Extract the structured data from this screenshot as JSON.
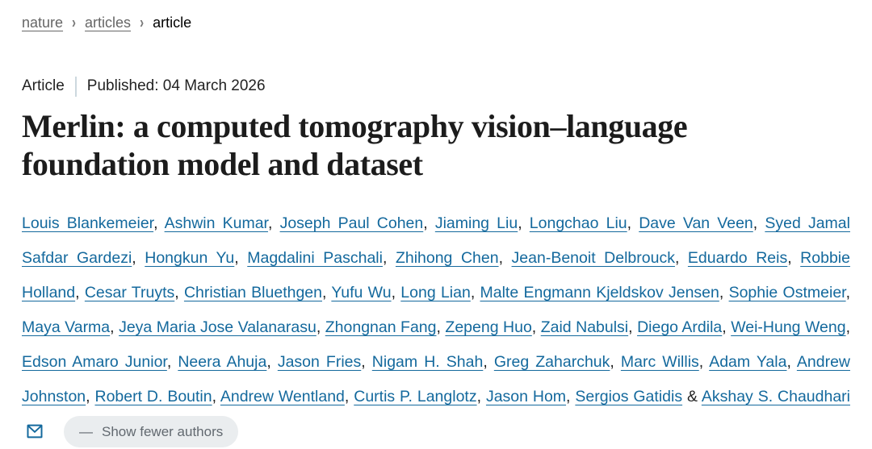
{
  "breadcrumb": {
    "items": [
      {
        "label": "nature"
      },
      {
        "label": "articles"
      },
      {
        "label": "article"
      }
    ],
    "separator": "›"
  },
  "meta": {
    "content_type": "Article",
    "published": "Published: 04 March 2026"
  },
  "title": "Merlin: a computed tomography vision–language foundation model and dataset",
  "authors": {
    "names": [
      "Louis Blankemeier",
      "Ashwin Kumar",
      "Joseph Paul Cohen",
      "Jiaming Liu",
      "Longchao Liu",
      "Dave Van Veen",
      "Syed Jamal Safdar Gardezi",
      "Hongkun Yu",
      "Magdalini Paschali",
      "Zhihong Chen",
      "Jean-Benoit Delbrouck",
      "Eduardo Reis",
      "Robbie Holland",
      "Cesar Truyts",
      "Christian Bluethgen",
      "Yufu Wu",
      "Long Lian",
      "Malte Engmann Kjeldskov Jensen",
      "Sophie Ostmeier",
      "Maya Varma",
      "Jeya Maria Jose Valanarasu",
      "Zhongnan Fang",
      "Zepeng Huo",
      "Zaid Nabulsi",
      "Diego Ardila",
      "Wei-Hung Weng",
      "Edson Amaro Junior",
      "Neera Ahuja",
      "Jason Fries",
      "Nigam H. Shah",
      "Greg Zaharchuk",
      "Marc Willis",
      "Adam Yala",
      "Andrew Johnston",
      "Robert D. Boutin",
      "Andrew Wentland",
      "Curtis P. Langlotz",
      "Jason Hom",
      "Sergios Gatidis",
      "Akshay S. Chaudhari"
    ],
    "separator": ", ",
    "final_separator": " & ",
    "corresponding_author_icon": "envelope-icon"
  },
  "show_fewer": {
    "icon": "—",
    "label": "Show fewer authors"
  },
  "colors": {
    "link_blue": "#14699d",
    "text_dark": "#222222",
    "breadcrumb_gray": "#666666",
    "pill_bg": "#eaedef",
    "pill_text": "#626970"
  }
}
